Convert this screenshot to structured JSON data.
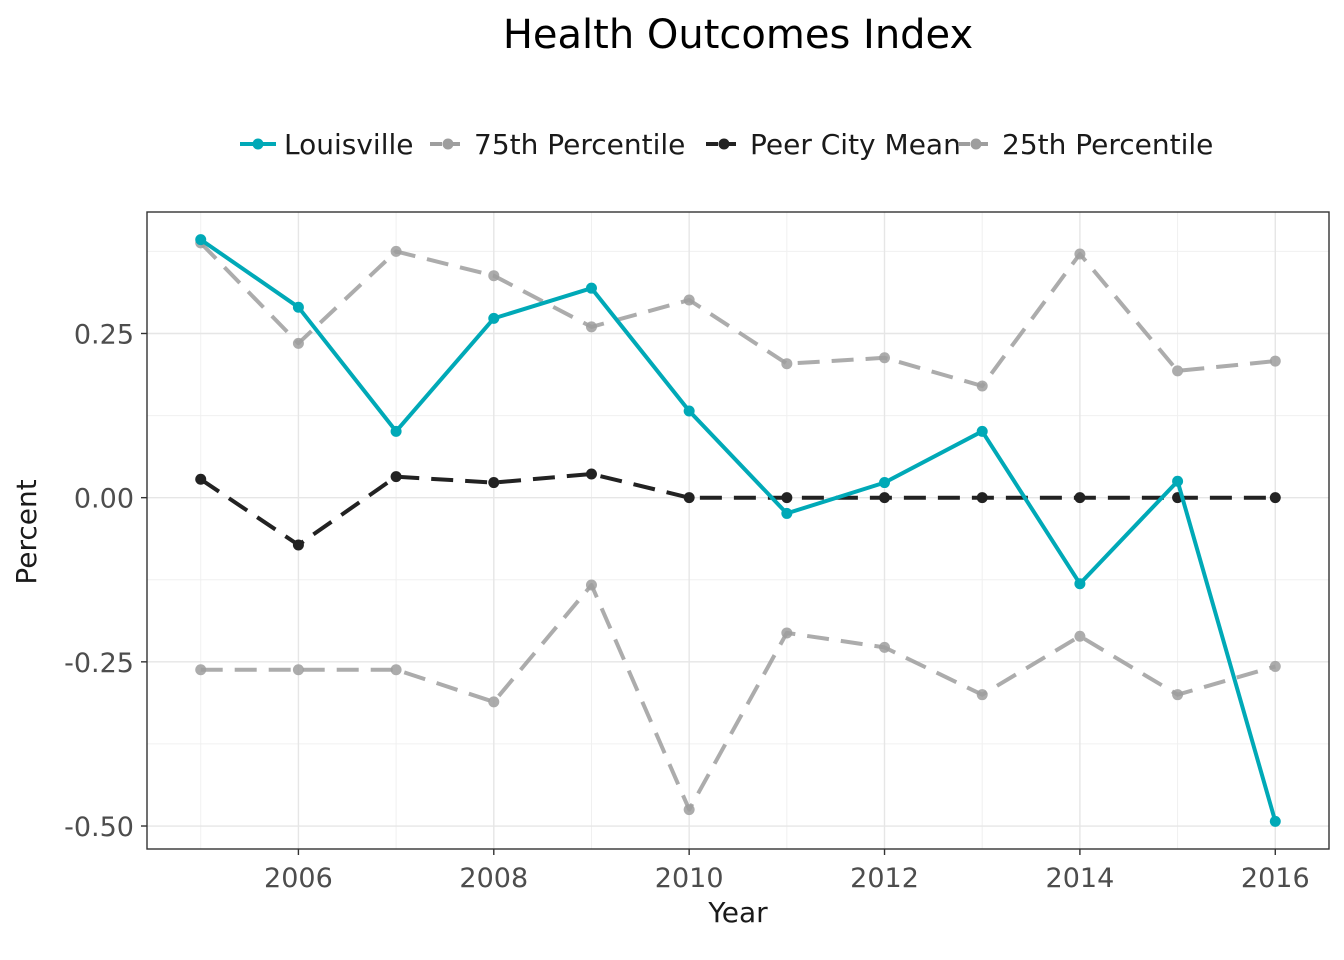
{
  "chart_data": {
    "type": "line",
    "title": "Health Outcomes Index",
    "xlabel": "Year",
    "ylabel": "Percent",
    "xlim": [
      2004.45,
      2016.55
    ],
    "ylim": [
      -0.535,
      0.435
    ],
    "x_ticks": [
      2006,
      2008,
      2010,
      2012,
      2014,
      2016
    ],
    "x_tick_labels": [
      "2006",
      "2008",
      "2010",
      "2012",
      "2014",
      "2016"
    ],
    "y_ticks": [
      0.25,
      0.0,
      -0.25,
      -0.5
    ],
    "y_tick_labels": [
      "0.25",
      "0.00",
      "-0.25",
      "-0.50"
    ],
    "grid": true,
    "legend_position": "top",
    "x": [
      2005,
      2006,
      2007,
      2008,
      2009,
      2010,
      2011,
      2012,
      2013,
      2014,
      2015,
      2016
    ],
    "series": [
      {
        "name": "Louisville",
        "color": "#00a9b7",
        "dashed": false,
        "values": [
          0.393,
          0.29,
          0.101,
          0.273,
          0.319,
          0.132,
          -0.024,
          0.023,
          0.101,
          -0.131,
          0.025,
          -0.493
        ]
      },
      {
        "name": "75th Percentile",
        "color": "#9e9e9e",
        "dashed": true,
        "values": [
          0.388,
          0.235,
          0.375,
          0.338,
          0.26,
          0.301,
          0.204,
          0.213,
          0.17,
          0.371,
          0.193,
          0.208
        ]
      },
      {
        "name": "Peer City Mean",
        "color": "#222222",
        "dashed": true,
        "values": [
          0.028,
          -0.072,
          0.032,
          0.023,
          0.036,
          0.0,
          0.0,
          0.0,
          0.0,
          0.0,
          0.0,
          0.0
        ]
      },
      {
        "name": "25th Percentile",
        "color": "#9e9e9e",
        "dashed": true,
        "values": [
          -0.262,
          -0.262,
          -0.262,
          -0.311,
          -0.133,
          -0.475,
          -0.206,
          -0.228,
          -0.3,
          -0.211,
          -0.3,
          -0.257
        ]
      }
    ]
  }
}
